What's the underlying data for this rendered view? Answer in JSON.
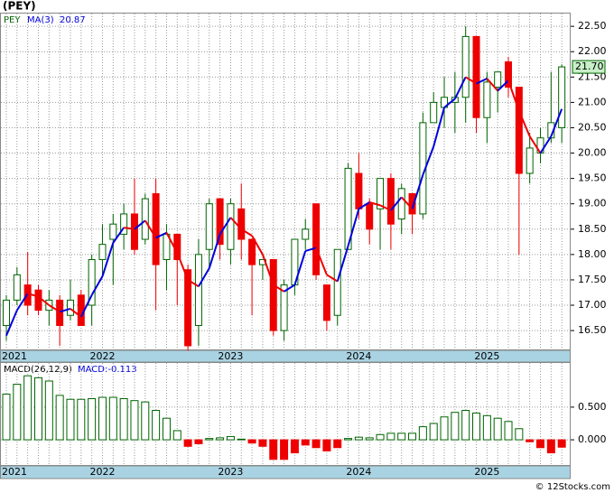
{
  "chart_data": [
    {
      "type": "candlestick",
      "title": "(PEY)",
      "legend": "PEY",
      "categories": [
        "2021",
        null,
        null,
        null,
        null,
        null,
        null,
        null,
        null,
        "2022",
        null,
        null,
        null,
        null,
        null,
        null,
        null,
        null,
        null,
        null,
        null,
        "2023",
        null,
        null,
        null,
        null,
        null,
        null,
        null,
        null,
        null,
        null,
        null,
        "2024",
        null,
        null,
        null,
        null,
        null,
        null,
        null,
        null,
        null,
        null,
        null,
        "2025",
        null,
        null,
        null,
        null,
        null,
        null,
        null
      ],
      "open": [
        16.6,
        17.1,
        17.4,
        17.3,
        16.9,
        17.1,
        16.8,
        17.2,
        17.0,
        17.9,
        18.3,
        18.4,
        18.8,
        18.3,
        19.2,
        17.9,
        18.4,
        17.7,
        16.6,
        18.1,
        19.1,
        18.1,
        18.9,
        18.3,
        17.8,
        17.9,
        16.5,
        17.4,
        18.3,
        19.0,
        17.4,
        16.8,
        18.1,
        19.6,
        19.0,
        18.9,
        19.5,
        18.7,
        19.2,
        18.8,
        20.6,
        20.9,
        21.0,
        21.1,
        22.3,
        20.7,
        21.3,
        21.8,
        21.3,
        19.6,
        20.0,
        20.3,
        20.5
      ],
      "high": [
        17.2,
        17.75,
        18.05,
        17.4,
        17.3,
        17.2,
        17.5,
        17.3,
        18.0,
        18.6,
        18.8,
        19.0,
        19.5,
        19.2,
        19.5,
        18.6,
        18.4,
        17.8,
        18.3,
        19.1,
        19.1,
        19.1,
        19.4,
        18.3,
        17.9,
        17.9,
        17.5,
        18.3,
        18.7,
        19.0,
        17.4,
        18.1,
        19.8,
        20.0,
        19.1,
        19.5,
        19.6,
        19.4,
        19.2,
        20.8,
        21.2,
        21.5,
        21.6,
        22.5,
        22.3,
        21.6,
        21.6,
        21.9,
        21.3,
        20.4,
        20.5,
        21.6,
        21.75
      ],
      "low": [
        16.3,
        17.0,
        16.8,
        16.8,
        16.6,
        16.2,
        16.7,
        16.6,
        16.6,
        17.6,
        17.4,
        18.1,
        18.0,
        18.2,
        16.9,
        17.3,
        17.0,
        16.1,
        16.2,
        17.7,
        17.9,
        17.8,
        17.9,
        16.8,
        17.5,
        16.4,
        16.3,
        17.2,
        18.1,
        17.5,
        16.5,
        16.6,
        18.1,
        18.7,
        18.2,
        18.1,
        18.1,
        18.4,
        18.4,
        18.7,
        20.6,
        20.5,
        20.4,
        20.6,
        20.4,
        20.2,
        20.8,
        21.1,
        18.0,
        19.4,
        19.8,
        20.2,
        20.2
      ],
      "close": [
        17.1,
        17.6,
        17.0,
        16.9,
        17.1,
        16.6,
        17.1,
        16.6,
        17.9,
        18.2,
        18.6,
        18.8,
        18.1,
        19.1,
        17.8,
        18.4,
        17.9,
        16.2,
        18.0,
        19.0,
        18.2,
        19.0,
        18.3,
        17.8,
        17.9,
        16.5,
        17.4,
        18.3,
        18.5,
        17.6,
        16.7,
        18.1,
        19.7,
        18.9,
        18.5,
        19.5,
        18.6,
        19.3,
        18.8,
        20.6,
        21.0,
        21.1,
        21.1,
        22.3,
        20.7,
        21.4,
        21.6,
        21.3,
        19.6,
        20.1,
        20.3,
        20.6,
        21.7
      ],
      "up_color": "#006400",
      "down_color": "#ee0000",
      "ma": {
        "name": "MA(3)",
        "value_label": "20.87",
        "up_color": "#0000dd",
        "down_color": "#ee0000",
        "values": [
          16.4,
          16.9,
          17.23,
          17.17,
          17.0,
          16.87,
          16.93,
          16.77,
          17.2,
          17.57,
          18.23,
          18.53,
          18.5,
          18.67,
          18.33,
          18.43,
          18.03,
          17.5,
          17.37,
          17.73,
          18.4,
          18.73,
          18.5,
          18.37,
          18.0,
          17.4,
          17.27,
          17.4,
          18.07,
          18.13,
          17.6,
          17.47,
          18.17,
          18.9,
          19.03,
          18.97,
          18.87,
          19.13,
          18.9,
          19.57,
          20.13,
          20.9,
          21.07,
          21.5,
          21.37,
          21.47,
          21.23,
          21.43,
          20.83,
          20.33,
          20.0,
          20.33,
          20.87
        ]
      },
      "last_label": "21.70",
      "ylim": [
        16.11,
        22.77
      ],
      "yticks": [
        {
          "value": 16.5,
          "label": "16.50"
        },
        {
          "value": 17,
          "label": "17.00"
        },
        {
          "value": 17.5,
          "label": "17.50"
        },
        {
          "value": 18,
          "label": "18.00"
        },
        {
          "value": 18.5,
          "label": "18.50"
        },
        {
          "value": 19,
          "label": "19.00"
        },
        {
          "value": 19.5,
          "label": "19.50"
        },
        {
          "value": 20,
          "label": "20.00"
        },
        {
          "value": 20.5,
          "label": "20.50"
        },
        {
          "value": 21,
          "label": "21.00"
        },
        {
          "value": 21.5,
          "label": "21.50"
        },
        {
          "value": 22,
          "label": "22.00"
        },
        {
          "value": 22.5,
          "label": "22.50"
        }
      ],
      "grid": true
    },
    {
      "type": "bar",
      "title": "MACD(26,12,9)",
      "value_label": "MACD:-0.113",
      "up_color": "#006400",
      "down_color": "#ee0000",
      "values": [
        0.7,
        0.85,
        0.98,
        0.95,
        0.9,
        0.68,
        0.62,
        0.62,
        0.63,
        0.65,
        0.65,
        0.63,
        0.6,
        0.58,
        0.45,
        0.33,
        0.14,
        -0.1,
        -0.06,
        0.02,
        0.03,
        0.05,
        0.01,
        -0.05,
        -0.1,
        -0.3,
        -0.3,
        -0.2,
        -0.08,
        -0.12,
        -0.17,
        -0.12,
        0.02,
        0.04,
        0.03,
        0.08,
        0.1,
        0.1,
        0.1,
        0.2,
        0.25,
        0.35,
        0.42,
        0.45,
        0.41,
        0.37,
        0.33,
        0.28,
        0.17,
        -0.03,
        -0.12,
        -0.2,
        -0.113
      ],
      "ylim": [
        -0.4,
        1.19
      ],
      "yticks": [
        {
          "value": 0,
          "label": "0.000"
        },
        {
          "value": 0.5,
          "label": "0.500"
        }
      ],
      "grid": true
    }
  ],
  "footer": "© 12Stocks.com"
}
